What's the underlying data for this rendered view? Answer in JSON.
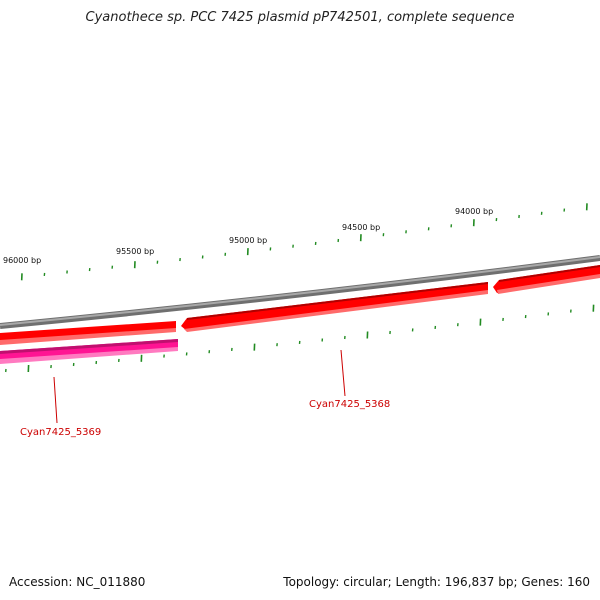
{
  "title": "Cyanothece sp. PCC 7425 plasmid pP742501, complete sequence",
  "footer": {
    "accession": "Accession: NC_011880",
    "summary": "Topology: circular; Length: 196,837 bp; Genes: 160"
  },
  "scale_labels": [
    "96000 bp",
    "95500 bp",
    "95000 bp",
    "94500 bp",
    "94000 bp"
  ],
  "genes": [
    {
      "name": "Cyan7425_5369",
      "color": "#ff1493"
    },
    {
      "name": "Cyan7425_5368",
      "color": "#ff0000"
    }
  ],
  "colors": {
    "backbone": "#808080",
    "gene_red": "#ff0000",
    "gene_pink": "#ff1493",
    "tick": "#228b22",
    "label_red": "#cc0000"
  }
}
